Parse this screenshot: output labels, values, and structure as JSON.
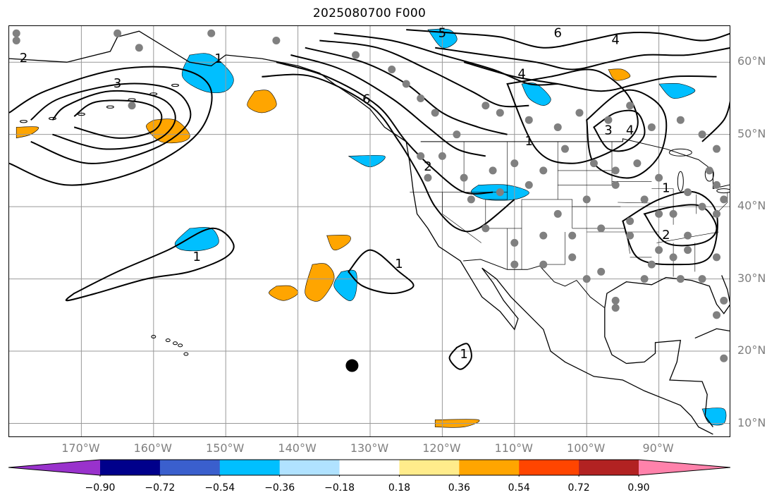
{
  "title": "2025080700 F000",
  "lat_labels": [
    "60°N",
    "50°N",
    "40°N",
    "30°N",
    "20°N",
    "10°N"
  ],
  "lon_labels": [
    "170°W",
    "160°W",
    "150°W",
    "140°W",
    "130°W",
    "120°W",
    "110°W",
    "100°W",
    "90°W"
  ],
  "colorbar": {
    "ticks": [
      "−0.90",
      "−0.72",
      "−0.54",
      "−0.36",
      "−0.18",
      "0.18",
      "0.36",
      "0.54",
      "0.72",
      "0.90"
    ],
    "colors": [
      "#9932cc",
      "#00008b",
      "#3a5fcd",
      "#00bfff",
      "#b0e2ff",
      "#ffffff",
      "#ffec8b",
      "#ffa500",
      "#ff4500",
      "#b22222",
      "#ff82ab"
    ]
  },
  "contour_labels": [
    "2",
    "3",
    "6",
    "4",
    "5",
    "6",
    "4",
    "1",
    "1",
    "1",
    "1",
    "1",
    "3",
    "4",
    "2",
    "1",
    "2"
  ],
  "map_extent": {
    "lon_min": -180,
    "lon_max": -80,
    "lat_min": 8,
    "lat_max": 65
  },
  "contours": [
    {
      "level": 1,
      "lon": [
        -171,
        -165,
        -158,
        -152,
        -149,
        -150,
        -155,
        -161,
        -168,
        -172,
        -171
      ],
      "lat": [
        28,
        31,
        34,
        37,
        35,
        33,
        31,
        30,
        28,
        27,
        28
      ]
    },
    {
      "level": 1,
      "lon": [
        -133,
        -130,
        -126,
        -124,
        -127,
        -131,
        -133
      ],
      "lat": [
        31,
        34,
        31,
        29,
        28,
        29,
        31
      ]
    },
    {
      "level": 1,
      "lon": [
        -118,
        -116.5,
        -116,
        -117.5,
        -119,
        -118
      ],
      "lat": [
        20.5,
        21,
        19,
        17.5,
        19,
        20.5
      ]
    },
    {
      "level": 2,
      "lon": [
        -180,
        -172,
        -162,
        -154,
        -152,
        -156,
        -165,
        -175,
        -180
      ],
      "lat": [
        46,
        43,
        45,
        50,
        56,
        59,
        59,
        56,
        53
      ]
    },
    {
      "level": 3,
      "lon": [
        -177,
        -169,
        -160,
        -155,
        -157,
        -164,
        -173,
        -177
      ],
      "lat": [
        49,
        46,
        48,
        52,
        56,
        57,
        55,
        52
      ]
    },
    {
      "level": 4,
      "lon": [
        -174,
        -167,
        -160,
        -157,
        -159,
        -166,
        -172,
        -174
      ],
      "lat": [
        50,
        48,
        49,
        52,
        55,
        56,
        54,
        52
      ]
    },
    {
      "level": 5,
      "lon": [
        -171,
        -165,
        -160,
        -159,
        -162,
        -168,
        -171
      ],
      "lat": [
        51,
        49.5,
        50.5,
        53,
        54.5,
        54.5,
        52.5
      ]
    },
    {
      "level": 1,
      "lon": [
        -145,
        -138,
        -130,
        -126,
        -123,
        -121,
        -118,
        -115,
        -110
      ],
      "lat": [
        58,
        58,
        54,
        49,
        44,
        40,
        37,
        37,
        41
      ]
    },
    {
      "level": 2,
      "lon": [
        -143,
        -136,
        -129,
        -125,
        -121,
        -117,
        -113
      ],
      "lat": [
        60,
        58,
        54,
        49,
        45,
        42,
        42
      ]
    },
    {
      "level": 3,
      "lon": [
        -141,
        -134,
        -127,
        -122,
        -118,
        -114
      ],
      "lat": [
        61,
        59,
        55,
        51,
        48,
        47
      ]
    },
    {
      "level": 4,
      "lon": [
        -139,
        -131,
        -125,
        -120,
        -115,
        -111
      ],
      "lat": [
        62,
        60,
        57,
        53,
        51,
        50
      ]
    },
    {
      "level": 5,
      "lon": [
        -137,
        -129,
        -122,
        -116,
        -112,
        -108
      ],
      "lat": [
        63,
        62,
        59,
        56,
        54,
        54
      ]
    },
    {
      "level": 6,
      "lon": [
        -135,
        -127,
        -120,
        -113,
        -108,
        -104
      ],
      "lat": [
        64,
        63,
        61,
        59,
        57,
        57
      ]
    },
    {
      "level": 6,
      "lon": [
        -125,
        -118,
        -112,
        -106,
        -100,
        -95,
        -90,
        -84,
        -80
      ],
      "lat": [
        64.5,
        64,
        63.5,
        62,
        63,
        64,
        64,
        63,
        64
      ]
    },
    {
      "level": 5,
      "lon": [
        -121,
        -114,
        -107,
        -102,
        -97,
        -92,
        -86,
        -80
      ],
      "lat": [
        62,
        61,
        60,
        59,
        60,
        61,
        61,
        62
      ]
    },
    {
      "level": 4,
      "lon": [
        -117,
        -110,
        -104,
        -98,
        -93,
        -88,
        -82
      ],
      "lat": [
        60,
        58,
        57,
        56,
        57,
        58,
        58
      ]
    },
    {
      "level": 1,
      "lon": [
        -111,
        -105,
        -100,
        -97,
        -94,
        -93,
        -96,
        -102,
        -107,
        -111
      ],
      "lat": [
        57,
        58,
        59,
        58,
        55,
        51,
        48,
        46,
        48,
        57
      ]
    },
    {
      "level": 3,
      "lon": [
        -99,
        -96,
        -93,
        -92,
        -94,
        -97,
        -99
      ],
      "lat": [
        51,
        53,
        53,
        50,
        48,
        48,
        51
      ]
    },
    {
      "level": 2,
      "lon": [
        -100,
        -95,
        -91,
        -89,
        -90,
        -94,
        -99,
        -100
      ],
      "lat": [
        52,
        56,
        55,
        52,
        47,
        44,
        46,
        52
      ]
    },
    {
      "level": 2,
      "lon": [
        -92,
        -88,
        -84,
        -82,
        -84,
        -89,
        -92
      ],
      "lat": [
        39,
        40,
        40,
        37,
        35,
        35,
        39
      ]
    },
    {
      "level": 1,
      "lon": [
        -95,
        -90,
        -85,
        -82,
        -83,
        -88,
        -93,
        -95
      ],
      "lat": [
        38,
        41,
        42,
        39,
        33,
        32,
        33,
        38
      ]
    },
    {
      "level": 1,
      "lon": [
        -84,
        -81,
        -80
      ],
      "lat": [
        49,
        52,
        55
      ]
    }
  ],
  "shaded_regions": [
    {
      "band": "-0.54",
      "lon": [
        -155,
        -152,
        -149,
        -150,
        -153,
        -156,
        -155
      ],
      "lat": [
        61,
        61,
        58,
        56,
        56,
        58,
        61
      ]
    },
    {
      "band": "0.54",
      "lon": [
        -160,
        -157,
        -155,
        -156,
        -159,
        -161,
        -160
      ],
      "lat": [
        52,
        52,
        50,
        49,
        49,
        51,
        52
      ]
    },
    {
      "band": "0.54",
      "lon": [
        -146,
        -144,
        -143,
        -145,
        -147,
        -146
      ],
      "lat": [
        56,
        56,
        54,
        53,
        54,
        56
      ]
    },
    {
      "band": "-0.54",
      "lon": [
        -155,
        -152,
        -151,
        -153,
        -156,
        -157,
        -155
      ],
      "lat": [
        37,
        37,
        35,
        34,
        34,
        35,
        37
      ]
    },
    {
      "band": "0.54",
      "lon": [
        -138,
        -136,
        -135,
        -137,
        -139,
        -138
      ],
      "lat": [
        32,
        32,
        30,
        27,
        28,
        32
      ]
    },
    {
      "band": "-0.54",
      "lon": [
        -134,
        -132,
        -132,
        -133,
        -135,
        -134
      ],
      "lat": [
        31,
        31,
        28,
        27,
        29,
        31
      ]
    },
    {
      "band": "0.54",
      "lon": [
        -143,
        -141,
        -140,
        -142,
        -144,
        -143
      ],
      "lat": [
        29,
        29,
        28,
        27,
        28,
        29
      ]
    },
    {
      "band": "0.54",
      "lon": [
        -136,
        -133,
        -133,
        -135,
        -136
      ],
      "lat": [
        36,
        36,
        35,
        34,
        36
      ]
    },
    {
      "band": "-0.54",
      "lon": [
        -115,
        -111,
        -108,
        -110,
        -114,
        -116,
        -115
      ],
      "lat": [
        43,
        43,
        42,
        41,
        41,
        42,
        43
      ]
    },
    {
      "band": "-0.54",
      "lon": [
        -109,
        -107,
        -105,
        -106,
        -108,
        -109
      ],
      "lat": [
        57,
        57,
        55,
        54,
        55,
        57
      ]
    },
    {
      "band": "-0.54",
      "lon": [
        -122,
        -119,
        -118,
        -120,
        -122
      ],
      "lat": [
        64.5,
        64.5,
        63,
        62,
        64.5
      ]
    },
    {
      "band": "0.54",
      "lon": [
        -179,
        -176,
        -177,
        -179
      ],
      "lat": [
        51,
        51,
        50,
        49.5
      ]
    },
    {
      "band": "0.54",
      "lon": [
        -121,
        -115,
        -117,
        -121
      ],
      "lat": [
        10.5,
        10.5,
        9.5,
        9.5
      ]
    },
    {
      "band": "-0.54",
      "lon": [
        -84,
        -81,
        -81,
        -83,
        -84
      ],
      "lat": [
        12,
        12,
        10,
        10,
        12
      ]
    },
    {
      "band": "-0.54",
      "lon": [
        -133,
        -128,
        -130,
        -133
      ],
      "lat": [
        47,
        47,
        45.5,
        47
      ]
    },
    {
      "band": "-0.54",
      "lon": [
        -90,
        -87,
        -85,
        -88,
        -90
      ],
      "lat": [
        57,
        57,
        56,
        55,
        57
      ]
    },
    {
      "band": "0.54",
      "lon": [
        -97,
        -95,
        -94,
        -96,
        -97
      ],
      "lat": [
        59,
        59,
        58,
        57.5,
        59
      ]
    }
  ],
  "station_dots": [
    {
      "lon": [
        -165,
        -162,
        -163,
        -152,
        -143,
        -132,
        -127,
        -125,
        -123,
        -121,
        -118,
        -114,
        -112,
        -108,
        -104,
        -101,
        -97,
        -94,
        -91,
        -87,
        -84,
        -82,
        -123,
        -122,
        -120,
        -117,
        -113,
        -110,
        -106,
        -103,
        -99,
        -96,
        -93,
        -90,
        -86,
        -83,
        -82,
        -116,
        -112,
        -108,
        -104,
        -100,
        -96,
        -92,
        -88,
        -84,
        -81,
        -114,
        -110,
        -106,
        -102,
        -98,
        -94,
        -90,
        -86,
        -82,
        -110,
        -106,
        -102,
        -98,
        -94,
        -90,
        -86,
        -82,
        -100,
        -96,
        -92,
        -88,
        -84,
        -81,
        -96,
        -91,
        -87,
        -82,
        -81
      ],
      "lat": [
        64,
        62,
        54,
        64,
        63,
        61,
        59,
        57,
        55,
        53,
        50,
        54,
        53,
        52,
        51,
        53,
        52,
        54,
        51,
        52,
        50,
        48,
        47,
        44,
        47,
        44,
        45,
        46,
        45,
        48,
        46,
        45,
        46,
        44,
        42,
        45,
        43,
        41,
        42,
        43,
        39,
        41,
        43,
        41,
        39,
        40,
        41,
        37,
        35,
        36,
        36,
        37,
        38,
        39,
        36,
        39,
        32,
        32,
        33,
        31,
        36,
        34,
        34,
        33,
        30,
        27,
        30,
        33,
        30,
        27,
        26,
        32,
        30,
        25,
        19
      ]
    },
    {
      "lon": [
        -179,
        -179
      ],
      "lat": [
        63,
        64
      ]
    }
  ],
  "marker": {
    "lon": -132.5,
    "lat": 18
  }
}
